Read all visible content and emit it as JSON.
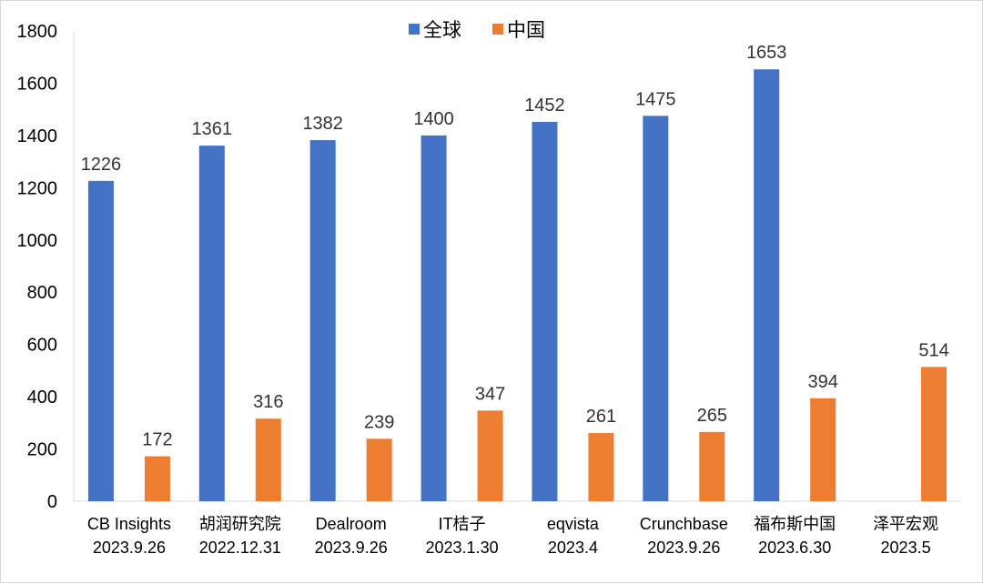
{
  "chart_data": {
    "type": "bar",
    "ylim": [
      0,
      1800
    ],
    "yticks": [
      0,
      200,
      400,
      600,
      800,
      1000,
      1200,
      1400,
      1600,
      1800
    ],
    "grid": false,
    "legend_position": "top-center",
    "categories": [
      [
        "CB Insights",
        "2023.9.26"
      ],
      [
        "胡润研究院",
        "2022.12.31"
      ],
      [
        "Dealroom",
        "2023.9.26"
      ],
      [
        "IT桔子",
        "2023.1.30"
      ],
      [
        "eqvista",
        "2023.4"
      ],
      [
        "Crunchbase",
        "2023.9.26"
      ],
      [
        "福布斯中国",
        "2023.6.30"
      ],
      [
        "泽平宏观",
        "2023.5"
      ]
    ],
    "series": [
      {
        "name": "全球",
        "color": "#4472c4",
        "values": [
          1226,
          1361,
          1382,
          1400,
          1452,
          1475,
          1653,
          null
        ]
      },
      {
        "name": "中国",
        "color": "#ed7d31",
        "values": [
          172,
          316,
          239,
          347,
          261,
          265,
          394,
          514
        ]
      }
    ]
  }
}
